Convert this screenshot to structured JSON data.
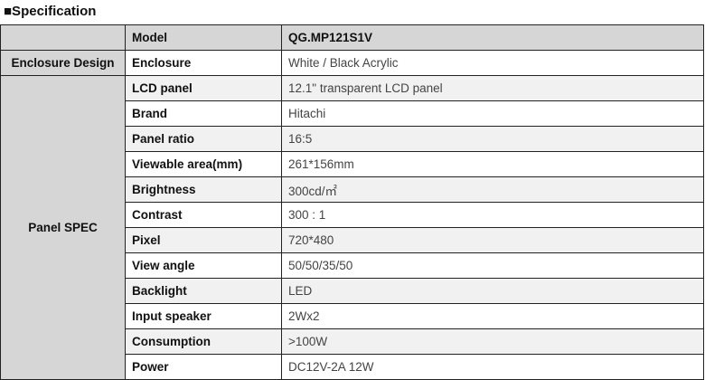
{
  "title": "■Specification",
  "model": {
    "label": "Model",
    "value": "QG.MP121S1V"
  },
  "groups": [
    {
      "name": "Enclosure Design",
      "rows": [
        {
          "label": "Enclosure",
          "value": "White / Black Acrylic"
        }
      ]
    },
    {
      "name": "Panel SPEC",
      "rows": [
        {
          "label": "LCD panel",
          "value": "12.1\" transparent LCD panel"
        },
        {
          "label": "Brand",
          "value": "Hitachi"
        },
        {
          "label": "Panel ratio",
          "value": "16:5"
        },
        {
          "label": "Viewable area(mm)",
          "value": "261*156mm"
        },
        {
          "label": "Brightness",
          "value": "300cd/㎡"
        },
        {
          "label": "Contrast",
          "value": "300 : 1"
        },
        {
          "label": "Pixel",
          "value": "720*480"
        },
        {
          "label": "View angle",
          "value": "50/50/35/50"
        },
        {
          "label": "Backlight",
          "value": "LED"
        },
        {
          "label": "Input speaker",
          "value": "2Wx2"
        },
        {
          "label": "Consumption",
          "value": ">100W"
        },
        {
          "label": "Power",
          "value": "DC12V-2A 12W"
        }
      ]
    }
  ]
}
